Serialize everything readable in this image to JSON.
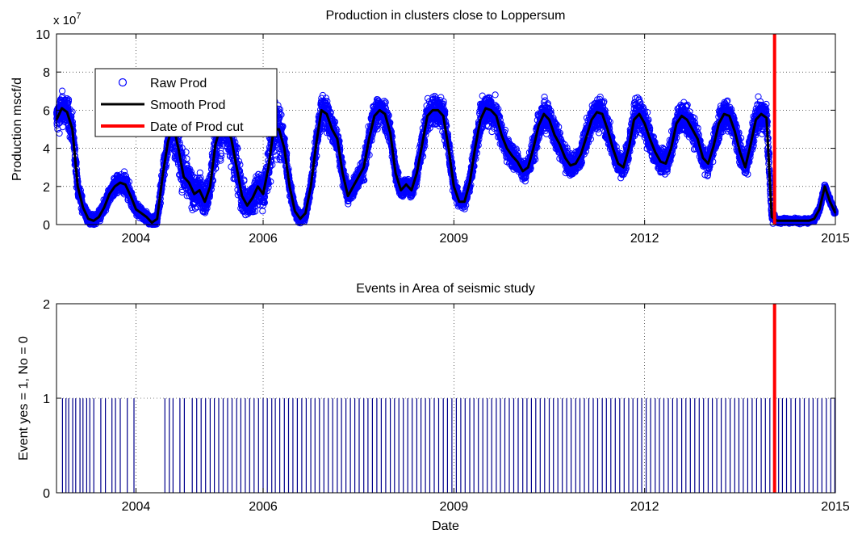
{
  "chart_data": [
    {
      "type": "scatter",
      "title": "Production in clusters close to Loppersum",
      "ylabel": "Production mscf/d",
      "xlabel": "",
      "y_exponent_label": "x 10",
      "y_exponent": "7",
      "ylim": [
        0,
        100000000
      ],
      "yticks": [
        0,
        20000000,
        40000000,
        60000000,
        80000000,
        100000000
      ],
      "ytick_labels": [
        "0",
        "2",
        "4",
        "6",
        "8",
        "10"
      ],
      "xlim": [
        "2002-10",
        "2015-01"
      ],
      "xticks": [
        "2004",
        "2006",
        "2009",
        "2012",
        "2015"
      ],
      "grid": true,
      "legend_position": "top-left",
      "colors": {
        "raw": "#0000ff",
        "smooth": "#000000",
        "cut": "#ff0000"
      },
      "series": [
        {
          "name": "Raw Prod",
          "marker": "circle",
          "spread_around_smooth": true
        },
        {
          "name": "Smooth Prod",
          "line": "solid",
          "points": [
            [
              "2002-10",
              55000000
            ],
            [
              "2002-11",
              61000000
            ],
            [
              "2002-12",
              59000000
            ],
            [
              "2003-01",
              50000000
            ],
            [
              "2003-02",
              20000000
            ],
            [
              "2003-03",
              9000000
            ],
            [
              "2003-04",
              3000000
            ],
            [
              "2003-05",
              2000000
            ],
            [
              "2003-06",
              4000000
            ],
            [
              "2003-07",
              9000000
            ],
            [
              "2003-08",
              16000000
            ],
            [
              "2003-09",
              20000000
            ],
            [
              "2003-10",
              22000000
            ],
            [
              "2003-11",
              21000000
            ],
            [
              "2003-12",
              15000000
            ],
            [
              "2004-01",
              8000000
            ],
            [
              "2004-02",
              6000000
            ],
            [
              "2004-03",
              4000000
            ],
            [
              "2004-04",
              1000000
            ],
            [
              "2004-05",
              3000000
            ],
            [
              "2004-06",
              25000000
            ],
            [
              "2004-07",
              43000000
            ],
            [
              "2004-08",
              53000000
            ],
            [
              "2004-09",
              40000000
            ],
            [
              "2004-10",
              25000000
            ],
            [
              "2004-11",
              22000000
            ],
            [
              "2004-12",
              16000000
            ],
            [
              "2005-01",
              18000000
            ],
            [
              "2005-02",
              12000000
            ],
            [
              "2005-03",
              20000000
            ],
            [
              "2005-04",
              42000000
            ],
            [
              "2005-05",
              52000000
            ],
            [
              "2005-06",
              51000000
            ],
            [
              "2005-07",
              45000000
            ],
            [
              "2005-08",
              30000000
            ],
            [
              "2005-09",
              15000000
            ],
            [
              "2005-10",
              10000000
            ],
            [
              "2005-11",
              14000000
            ],
            [
              "2005-12",
              20000000
            ],
            [
              "2006-01",
              16000000
            ],
            [
              "2006-02",
              30000000
            ],
            [
              "2006-03",
              50000000
            ],
            [
              "2006-04",
              50000000
            ],
            [
              "2006-05",
              40000000
            ],
            [
              "2006-06",
              20000000
            ],
            [
              "2006-07",
              7000000
            ],
            [
              "2006-08",
              3000000
            ],
            [
              "2006-09",
              6000000
            ],
            [
              "2006-10",
              20000000
            ],
            [
              "2006-11",
              42000000
            ],
            [
              "2006-12",
              60000000
            ],
            [
              "2007-01",
              58000000
            ],
            [
              "2007-02",
              50000000
            ],
            [
              "2007-03",
              45000000
            ],
            [
              "2007-04",
              27000000
            ],
            [
              "2007-05",
              15000000
            ],
            [
              "2007-06",
              20000000
            ],
            [
              "2007-07",
              25000000
            ],
            [
              "2007-08",
              30000000
            ],
            [
              "2007-09",
              45000000
            ],
            [
              "2007-10",
              57000000
            ],
            [
              "2007-11",
              60000000
            ],
            [
              "2007-12",
              58000000
            ],
            [
              "2008-01",
              48000000
            ],
            [
              "2008-02",
              27000000
            ],
            [
              "2008-03",
              18000000
            ],
            [
              "2008-04",
              21000000
            ],
            [
              "2008-05",
              18000000
            ],
            [
              "2008-06",
              27000000
            ],
            [
              "2008-07",
              42000000
            ],
            [
              "2008-08",
              57000000
            ],
            [
              "2008-09",
              60000000
            ],
            [
              "2008-10",
              60000000
            ],
            [
              "2008-11",
              57000000
            ],
            [
              "2008-12",
              40000000
            ],
            [
              "2009-01",
              20000000
            ],
            [
              "2009-02",
              12000000
            ],
            [
              "2009-03",
              12000000
            ],
            [
              "2009-04",
              22000000
            ],
            [
              "2009-05",
              40000000
            ],
            [
              "2009-06",
              55000000
            ],
            [
              "2009-07",
              61000000
            ],
            [
              "2009-08",
              60000000
            ],
            [
              "2009-09",
              57000000
            ],
            [
              "2009-10",
              47000000
            ],
            [
              "2009-11",
              40000000
            ],
            [
              "2009-12",
              36000000
            ],
            [
              "2010-01",
              33000000
            ],
            [
              "2010-02",
              28000000
            ],
            [
              "2010-03",
              30000000
            ],
            [
              "2010-04",
              40000000
            ],
            [
              "2010-05",
              52000000
            ],
            [
              "2010-06",
              58000000
            ],
            [
              "2010-07",
              55000000
            ],
            [
              "2010-08",
              47000000
            ],
            [
              "2010-09",
              42000000
            ],
            [
              "2010-10",
              35000000
            ],
            [
              "2010-11",
              31000000
            ],
            [
              "2010-12",
              32000000
            ],
            [
              "2011-01",
              37000000
            ],
            [
              "2011-02",
              46000000
            ],
            [
              "2011-03",
              55000000
            ],
            [
              "2011-04",
              59000000
            ],
            [
              "2011-05",
              58000000
            ],
            [
              "2011-06",
              50000000
            ],
            [
              "2011-07",
              40000000
            ],
            [
              "2011-08",
              32000000
            ],
            [
              "2011-09",
              30000000
            ],
            [
              "2011-10",
              40000000
            ],
            [
              "2011-11",
              55000000
            ],
            [
              "2011-12",
              58000000
            ],
            [
              "2012-01",
              53000000
            ],
            [
              "2012-02",
              45000000
            ],
            [
              "2012-03",
              38000000
            ],
            [
              "2012-04",
              33000000
            ],
            [
              "2012-05",
              32000000
            ],
            [
              "2012-06",
              40000000
            ],
            [
              "2012-07",
              53000000
            ],
            [
              "2012-08",
              57000000
            ],
            [
              "2012-09",
              55000000
            ],
            [
              "2012-10",
              50000000
            ],
            [
              "2012-11",
              45000000
            ],
            [
              "2012-12",
              35000000
            ],
            [
              "2013-01",
              32000000
            ],
            [
              "2013-02",
              41000000
            ],
            [
              "2013-03",
              53000000
            ],
            [
              "2013-04",
              58000000
            ],
            [
              "2013-05",
              57000000
            ],
            [
              "2013-06",
              49000000
            ],
            [
              "2013-07",
              38000000
            ],
            [
              "2013-08",
              30000000
            ],
            [
              "2013-09",
              42000000
            ],
            [
              "2013-10",
              55000000
            ],
            [
              "2013-11",
              58000000
            ],
            [
              "2013-12",
              56000000
            ],
            [
              "2014-01",
              4000000
            ],
            [
              "2014-02",
              2000000
            ],
            [
              "2014-03",
              2000000
            ],
            [
              "2014-04",
              2000000
            ],
            [
              "2014-05",
              2000000
            ],
            [
              "2014-06",
              2000000
            ],
            [
              "2014-07",
              2000000
            ],
            [
              "2014-08",
              2000000
            ],
            [
              "2014-09",
              3000000
            ],
            [
              "2014-10",
              8000000
            ],
            [
              "2014-11",
              20000000
            ],
            [
              "2014-12",
              12000000
            ],
            [
              "2015-01",
              6000000
            ]
          ]
        },
        {
          "name": "Date of Prod cut",
          "line": "vertical",
          "x": "2014-01-17"
        }
      ]
    },
    {
      "type": "bar",
      "title": "Events in Area of seismic study",
      "ylabel": "Event yes = 1, No = 0",
      "xlabel": "Date",
      "ylim": [
        0,
        2
      ],
      "yticks": [
        0,
        1,
        2
      ],
      "ytick_labels": [
        "0",
        "1",
        "2"
      ],
      "xlim": [
        "2002-10",
        "2015-01"
      ],
      "xticks": [
        "2004",
        "2006",
        "2009",
        "2012",
        "2015"
      ],
      "grid": true,
      "colors": {
        "events": "#00008b",
        "cut": "#ff0000"
      },
      "cut_date": "2014-01-17",
      "event_value": 1,
      "event_dates": [
        "2002-11-05",
        "2002-11-25",
        "2002-12-10",
        "2003-01-03",
        "2003-01-20",
        "2003-02-14",
        "2003-03-01",
        "2003-03-22",
        "2003-04-10",
        "2003-05-02",
        "2003-06-12",
        "2003-07-08",
        "2003-08-15",
        "2003-09-05",
        "2003-10-02",
        "2003-11-12",
        "2003-12-20",
        "2004-06-15",
        "2004-07-10",
        "2004-08-01",
        "2004-09-10",
        "2004-10-05",
        "2004-11-20",
        "2004-12-15",
        "2005-01-10",
        "2005-02-05",
        "2005-03-01",
        "2005-03-25",
        "2005-04-20",
        "2005-05-15",
        "2005-06-10",
        "2005-07-05",
        "2005-08-01",
        "2005-08-25",
        "2005-09-20",
        "2005-10-15",
        "2005-11-10",
        "2005-12-05",
        "2006-01-01",
        "2006-01-25",
        "2006-02-20",
        "2006-03-10",
        "2006-04-05",
        "2006-05-01",
        "2006-05-25",
        "2006-06-20",
        "2006-07-15",
        "2006-08-10",
        "2006-09-05",
        "2006-10-01",
        "2006-10-25",
        "2006-11-20",
        "2006-12-15",
        "2007-01-10",
        "2007-02-05",
        "2007-03-01",
        "2007-03-25",
        "2007-04-20",
        "2007-05-15",
        "2007-06-10",
        "2007-07-05",
        "2007-08-01",
        "2007-08-25",
        "2007-09-20",
        "2007-10-15",
        "2007-11-10",
        "2007-12-05",
        "2008-01-01",
        "2008-01-25",
        "2008-02-20",
        "2008-03-15",
        "2008-04-10",
        "2008-05-05",
        "2008-06-01",
        "2008-06-25",
        "2008-07-20",
        "2008-08-15",
        "2008-09-10",
        "2008-10-05",
        "2008-11-01",
        "2008-11-25",
        "2008-12-20",
        "2009-01-15",
        "2009-02-10",
        "2009-03-05",
        "2009-04-01",
        "2009-04-25",
        "2009-05-20",
        "2009-06-15",
        "2009-07-10",
        "2009-08-05",
        "2009-09-01",
        "2009-09-25",
        "2009-10-20",
        "2009-11-15",
        "2009-12-10",
        "2010-01-05",
        "2010-02-01",
        "2010-02-25",
        "2010-03-20",
        "2010-04-15",
        "2010-05-10",
        "2010-06-05",
        "2010-07-01",
        "2010-07-25",
        "2010-08-20",
        "2010-09-15",
        "2010-10-10",
        "2010-11-05",
        "2010-12-01",
        "2010-12-25",
        "2011-01-20",
        "2011-02-15",
        "2011-03-10",
        "2011-04-05",
        "2011-05-01",
        "2011-05-25",
        "2011-06-20",
        "2011-07-15",
        "2011-08-10",
        "2011-09-05",
        "2011-10-01",
        "2011-10-25",
        "2011-11-20",
        "2011-12-15",
        "2012-01-10",
        "2012-02-05",
        "2012-03-01",
        "2012-03-25",
        "2012-04-20",
        "2012-05-15",
        "2012-06-10",
        "2012-07-05",
        "2012-08-01",
        "2012-08-25",
        "2012-09-20",
        "2012-10-15",
        "2012-11-10",
        "2012-12-05",
        "2013-01-01",
        "2013-01-25",
        "2013-02-20",
        "2013-03-15",
        "2013-04-10",
        "2013-05-05",
        "2013-06-01",
        "2013-06-25",
        "2013-07-20",
        "2013-08-15",
        "2013-09-10",
        "2013-10-05",
        "2013-11-01",
        "2013-11-25",
        "2013-12-20",
        "2014-02-10",
        "2014-03-01",
        "2014-03-25",
        "2014-04-20",
        "2014-05-15",
        "2014-06-10",
        "2014-07-05",
        "2014-08-01",
        "2014-08-25",
        "2014-09-20",
        "2014-10-15",
        "2014-11-10",
        "2014-12-05",
        "2014-12-28"
      ]
    }
  ]
}
